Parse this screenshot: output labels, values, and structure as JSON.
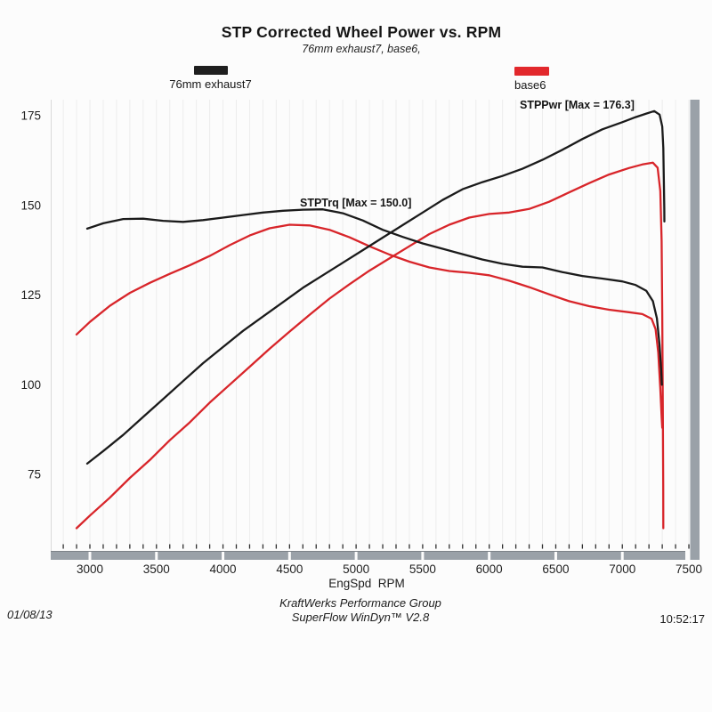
{
  "title": "STP Corrected Wheel Power vs. RPM",
  "subtitle": "76mm exhaust7, base6,",
  "legend": [
    {
      "label": "76mm exhaust7",
      "color": "#1f1f1f"
    },
    {
      "label": "base6",
      "color": "#e2282c"
    }
  ],
  "annotations": {
    "power_max": "STPPwr [Max = 176.3]",
    "torque_max": "STPTrq [Max = 150.0]"
  },
  "footer": {
    "date": "01/08/13",
    "line1": "KraftWerks Performance Group",
    "line2": "SuperFlow WinDyn™ V2.8",
    "time": "10:52:17"
  },
  "colors": {
    "black_curve": "#1b1b1b",
    "red_curve": "#d8252a",
    "axis_bar": "#9aa1a8",
    "axis_bar_edge": "#7c8288",
    "grid": "#ededed",
    "tick": "#2f2f2f",
    "label": "#1f1f1f",
    "plot_border": "#d9d9d9"
  },
  "chart_data": {
    "type": "line",
    "title": "STP Corrected Wheel Power vs. RPM",
    "subtitle": "76mm exhaust7, base6,",
    "xlabel": "EngSpd  RPM",
    "ylabel": "",
    "xlim": [
      2700,
      7500
    ],
    "ylim": [
      53,
      180
    ],
    "x_ticks": [
      3000,
      3500,
      4000,
      4500,
      5000,
      5500,
      6000,
      6500,
      7000,
      7500
    ],
    "y_ticks": [
      75,
      100,
      125,
      150,
      175
    ],
    "minor_tick_step": 100,
    "grid": "vertical-minor",
    "legend_position": "top",
    "series": [
      {
        "name": "base6 STPPwr",
        "run": "base6",
        "quantity": "STPPwr",
        "max": 161.9,
        "color": "#d8252a",
        "points": [
          [
            2900,
            60
          ],
          [
            3000,
            63.5
          ],
          [
            3150,
            68.5
          ],
          [
            3300,
            74
          ],
          [
            3450,
            79
          ],
          [
            3600,
            84.5
          ],
          [
            3750,
            89.5
          ],
          [
            3900,
            95
          ],
          [
            4050,
            100
          ],
          [
            4200,
            105
          ],
          [
            4350,
            110
          ],
          [
            4500,
            114.8
          ],
          [
            4650,
            119.5
          ],
          [
            4800,
            124
          ],
          [
            4950,
            128
          ],
          [
            5100,
            131.8
          ],
          [
            5250,
            135.2
          ],
          [
            5400,
            138.6
          ],
          [
            5550,
            142
          ],
          [
            5700,
            144.6
          ],
          [
            5850,
            146.6
          ],
          [
            6000,
            147.6
          ],
          [
            6150,
            148
          ],
          [
            6300,
            149
          ],
          [
            6450,
            151
          ],
          [
            6600,
            153.6
          ],
          [
            6750,
            156.2
          ],
          [
            6900,
            158.6
          ],
          [
            7050,
            160.4
          ],
          [
            7150,
            161.4
          ],
          [
            7230,
            161.9
          ],
          [
            7265,
            160.5
          ],
          [
            7285,
            154
          ],
          [
            7295,
            140
          ],
          [
            7300,
            120
          ],
          [
            7304,
            95
          ],
          [
            7307,
            72
          ],
          [
            7308,
            60
          ]
        ]
      },
      {
        "name": "base6 STPTrq",
        "run": "base6",
        "quantity": "STPTrq",
        "max": 144.6,
        "color": "#d8252a",
        "points": [
          [
            2900,
            114
          ],
          [
            3000,
            117.5
          ],
          [
            3150,
            122
          ],
          [
            3300,
            125.6
          ],
          [
            3450,
            128.4
          ],
          [
            3600,
            130.9
          ],
          [
            3750,
            133.3
          ],
          [
            3900,
            135.9
          ],
          [
            4050,
            138.9
          ],
          [
            4200,
            141.6
          ],
          [
            4350,
            143.6
          ],
          [
            4500,
            144.6
          ],
          [
            4650,
            144.4
          ],
          [
            4800,
            143.2
          ],
          [
            4950,
            141.1
          ],
          [
            5100,
            138.6
          ],
          [
            5250,
            136.3
          ],
          [
            5400,
            134.3
          ],
          [
            5550,
            132.7
          ],
          [
            5700,
            131.7
          ],
          [
            5850,
            131.2
          ],
          [
            6000,
            130.5
          ],
          [
            6150,
            129
          ],
          [
            6300,
            127.2
          ],
          [
            6450,
            125.2
          ],
          [
            6600,
            123.3
          ],
          [
            6750,
            121.9
          ],
          [
            6900,
            120.9
          ],
          [
            7050,
            120.2
          ],
          [
            7150,
            119.7
          ],
          [
            7220,
            118.4
          ],
          [
            7250,
            115.5
          ],
          [
            7270,
            109
          ],
          [
            7285,
            99
          ],
          [
            7295,
            91
          ],
          [
            7300,
            88
          ]
        ]
      },
      {
        "name": "76mm exhaust7 STPPwr",
        "run": "76mm exhaust7",
        "quantity": "STPPwr",
        "max": 176.3,
        "color": "#1b1b1b",
        "points": [
          [
            2980,
            78
          ],
          [
            3100,
            81.5
          ],
          [
            3250,
            86
          ],
          [
            3400,
            91
          ],
          [
            3550,
            96
          ],
          [
            3700,
            101
          ],
          [
            3850,
            106
          ],
          [
            4000,
            110.5
          ],
          [
            4150,
            115
          ],
          [
            4300,
            119
          ],
          [
            4450,
            123
          ],
          [
            4600,
            127
          ],
          [
            4750,
            130.5
          ],
          [
            4900,
            134
          ],
          [
            5050,
            137.5
          ],
          [
            5200,
            141
          ],
          [
            5350,
            144.5
          ],
          [
            5500,
            148
          ],
          [
            5650,
            151.5
          ],
          [
            5800,
            154.5
          ],
          [
            5950,
            156.5
          ],
          [
            6100,
            158.2
          ],
          [
            6250,
            160.2
          ],
          [
            6400,
            162.7
          ],
          [
            6550,
            165.5
          ],
          [
            6700,
            168.5
          ],
          [
            6850,
            171.2
          ],
          [
            7000,
            173.2
          ],
          [
            7100,
            174.6
          ],
          [
            7180,
            175.6
          ],
          [
            7240,
            176.3
          ],
          [
            7280,
            175.3
          ],
          [
            7300,
            172
          ],
          [
            7308,
            166
          ],
          [
            7312,
            157
          ],
          [
            7315,
            149
          ],
          [
            7316,
            145.5
          ]
        ]
      },
      {
        "name": "76mm exhaust7 STPTrq",
        "run": "76mm exhaust7",
        "quantity": "STPTrq",
        "max": 150.0,
        "color": "#1b1b1b",
        "points": [
          [
            2980,
            143.5
          ],
          [
            3100,
            145
          ],
          [
            3250,
            146.2
          ],
          [
            3400,
            146.3
          ],
          [
            3550,
            145.7
          ],
          [
            3700,
            145.4
          ],
          [
            3850,
            145.9
          ],
          [
            4000,
            146.6
          ],
          [
            4150,
            147.3
          ],
          [
            4300,
            148
          ],
          [
            4450,
            148.5
          ],
          [
            4600,
            148.8
          ],
          [
            4750,
            148.9
          ],
          [
            4900,
            147.8
          ],
          [
            5050,
            145.8
          ],
          [
            5200,
            143.2
          ],
          [
            5350,
            141.2
          ],
          [
            5500,
            139.4
          ],
          [
            5650,
            137.9
          ],
          [
            5800,
            136.4
          ],
          [
            5950,
            134.9
          ],
          [
            6100,
            133.7
          ],
          [
            6250,
            132.9
          ],
          [
            6400,
            132.7
          ],
          [
            6550,
            131.4
          ],
          [
            6700,
            130.3
          ],
          [
            6850,
            129.6
          ],
          [
            7000,
            128.8
          ],
          [
            7100,
            127.8
          ],
          [
            7180,
            126.2
          ],
          [
            7230,
            123.3
          ],
          [
            7260,
            118.5
          ],
          [
            7280,
            111
          ],
          [
            7292,
            104
          ],
          [
            7297,
            100
          ]
        ]
      }
    ]
  }
}
